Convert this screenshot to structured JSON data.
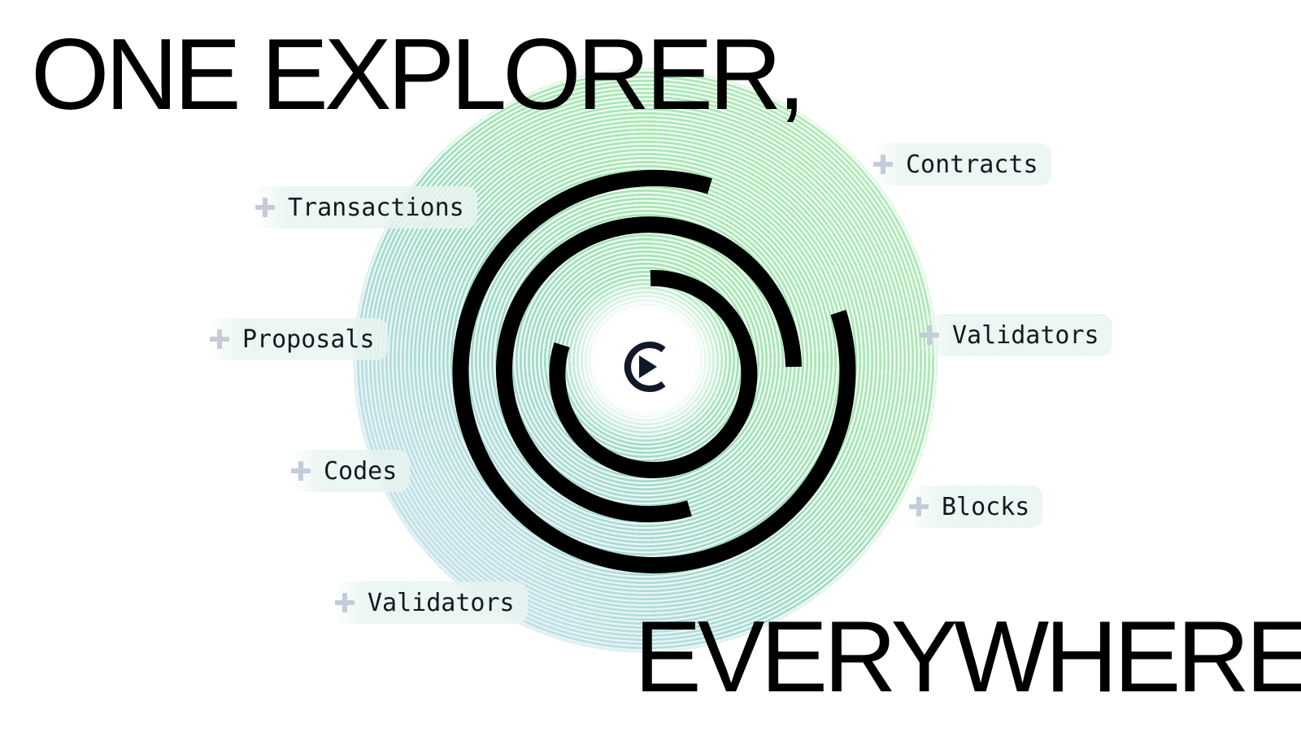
{
  "headline": {
    "line1": "ONE EXPLORER,",
    "line2": "EVERYWHERE"
  },
  "logo": {
    "icon": "c-play-logo-icon",
    "color": "#111827"
  },
  "tags": {
    "transactions": "Transactions",
    "proposals": "Proposals",
    "codes": "Codes",
    "validators_left": "Validators",
    "contracts": "Contracts",
    "validators_right": "Validators",
    "blocks": "Blocks"
  },
  "colors": {
    "text": "#000000",
    "plus_icon": "#c3ccd8",
    "disc_blue": "#a8d5ef",
    "disc_green": "#a6e6b2",
    "arcs": "#000000"
  }
}
